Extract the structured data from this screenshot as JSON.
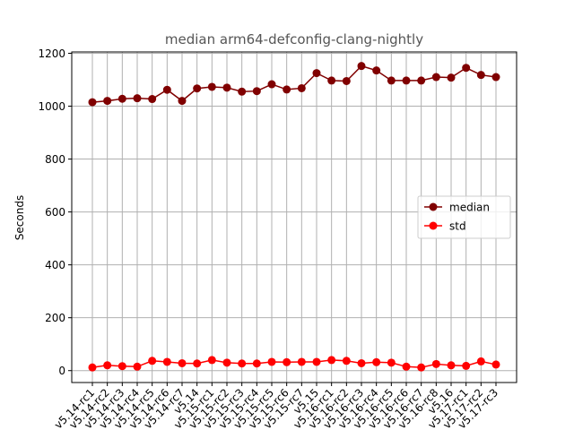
{
  "chart_data": {
    "type": "line",
    "title": "median arm64-defconfig-clang-nightly",
    "xlabel": "",
    "ylabel": "Seconds",
    "ylim": [
      -45,
      1205
    ],
    "yticks": [
      0,
      200,
      400,
      600,
      800,
      1000,
      1200
    ],
    "grid": true,
    "legend_position": "center-right",
    "categories": [
      "v5.14-rc1",
      "v5.14-rc2",
      "v5.14-rc3",
      "v5.14-rc4",
      "v5.14-rc5",
      "v5.14-rc6",
      "v5.14-rc7",
      "v5.14",
      "v5.15-rc1",
      "v5.15-rc2",
      "v5.15-rc3",
      "v5.15-rc4",
      "v5.15-rc5",
      "v5.15-rc6",
      "v5.15-rc7",
      "v5.15",
      "v5.16-rc1",
      "v5.16-rc2",
      "v5.16-rc3",
      "v5.16-rc4",
      "v5.16-rc5",
      "v5.16-rc6",
      "v5.16-rc7",
      "v5.16-rc8",
      "v5.16",
      "v5.17-rc1",
      "v5.17-rc2",
      "v5.17-rc3"
    ],
    "series": [
      {
        "name": "median",
        "color": "#800000",
        "values": [
          1015,
          1020,
          1028,
          1030,
          1027,
          1062,
          1020,
          1067,
          1073,
          1070,
          1055,
          1057,
          1083,
          1063,
          1068,
          1125,
          1097,
          1095,
          1152,
          1135,
          1097,
          1097,
          1097,
          1110,
          1108,
          1145,
          1118,
          1110
        ]
      },
      {
        "name": "std",
        "color": "#ff0000",
        "values": [
          12,
          20,
          17,
          15,
          37,
          33,
          28,
          27,
          40,
          30,
          27,
          27,
          33,
          32,
          33,
          33,
          40,
          37,
          28,
          32,
          30,
          15,
          12,
          25,
          20,
          18,
          35,
          23
        ]
      }
    ]
  }
}
